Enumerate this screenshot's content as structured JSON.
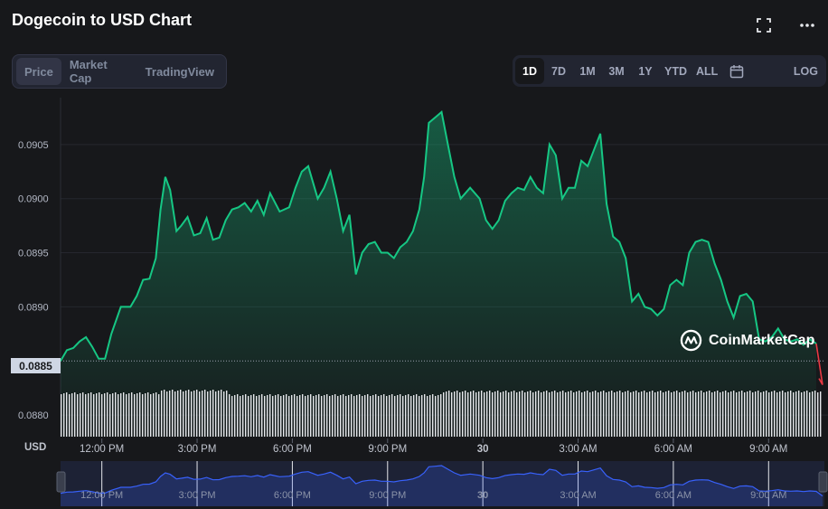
{
  "header": {
    "title": "Dogecoin to USD Chart"
  },
  "icons": {
    "fullscreen": "fullscreen-icon",
    "more": "more-icon",
    "calendar": "calendar-icon",
    "logo": "coinmarketcap-logo-icon"
  },
  "tabs": [
    {
      "label": "Price",
      "active": true
    },
    {
      "label": "Market Cap",
      "active": false
    },
    {
      "label": "TradingView",
      "active": false
    }
  ],
  "ranges": [
    {
      "label": "1D",
      "active": true
    },
    {
      "label": "7D",
      "active": false
    },
    {
      "label": "1M",
      "active": false
    },
    {
      "label": "3M",
      "active": false
    },
    {
      "label": "1Y",
      "active": false
    },
    {
      "label": "YTD",
      "active": false
    },
    {
      "label": "ALL",
      "active": false
    }
  ],
  "log_label": "LOG",
  "currency_label": "USD",
  "current_price_label": "0.0885",
  "watermark": "CoinMarketCap",
  "colors": {
    "line": "#16c784",
    "down": "#ea3943",
    "background": "#17181b",
    "panel": "#222531",
    "nav_line": "#3861fb"
  },
  "chart_data": {
    "type": "area",
    "title": "Dogecoin to USD Chart",
    "ylabel": "",
    "xlabel": "",
    "ylim": [
      0.0878,
      0.091
    ],
    "yticks": [
      0.088,
      0.0885,
      0.089,
      0.0895,
      0.09,
      0.0905
    ],
    "ytick_labels": [
      "0.0880",
      "0.0885",
      "0.0890",
      "0.0895",
      "0.0900",
      "0.0905"
    ],
    "xlim": [
      10.7,
      34.7
    ],
    "xticks": [
      {
        "x": 12,
        "label": "12:00 PM",
        "bold": false
      },
      {
        "x": 15,
        "label": "3:00 PM",
        "bold": false
      },
      {
        "x": 18,
        "label": "6:00 PM",
        "bold": false
      },
      {
        "x": 21,
        "label": "9:00 PM",
        "bold": false
      },
      {
        "x": 24,
        "label": "30",
        "bold": true
      },
      {
        "x": 27,
        "label": "3:00 AM",
        "bold": false
      },
      {
        "x": 30,
        "label": "6:00 AM",
        "bold": false
      },
      {
        "x": 33,
        "label": "9:00 AM",
        "bold": false
      }
    ],
    "grid": true,
    "legend": "none",
    "current_price": 0.0885,
    "series": [
      {
        "x": [
          10.7,
          10.9,
          11.1,
          11.3,
          11.5,
          11.7,
          11.9,
          12.1,
          12.3,
          12.6,
          12.9,
          13.1,
          13.3,
          13.5,
          13.7,
          13.85,
          14.0,
          14.15,
          14.35,
          14.5,
          14.7,
          14.9,
          15.1,
          15.3,
          15.5,
          15.7,
          15.9,
          16.1,
          16.3,
          16.5,
          16.7,
          16.9,
          17.1,
          17.3,
          17.6,
          17.9,
          18.1,
          18.3,
          18.5,
          18.8,
          19.0,
          19.2,
          19.4,
          19.6,
          19.8,
          20.0,
          20.2,
          20.4,
          20.6,
          20.8,
          21.0,
          21.2,
          21.4,
          21.6,
          21.8,
          22.0,
          22.15,
          22.3,
          22.5,
          22.7,
          22.9,
          23.1,
          23.3,
          23.6,
          23.9,
          24.1,
          24.3,
          24.5,
          24.7,
          24.9,
          25.1,
          25.3,
          25.5,
          25.7,
          25.9,
          26.1,
          26.3,
          26.5,
          26.7,
          26.9,
          27.1,
          27.3,
          27.5,
          27.7,
          27.9,
          28.1,
          28.3,
          28.5,
          28.7,
          28.9,
          29.1,
          29.3,
          29.5,
          29.7,
          29.9,
          30.1,
          30.3,
          30.5,
          30.7,
          30.9,
          31.1,
          31.3,
          31.5,
          31.7,
          31.9,
          32.1,
          32.3,
          32.5,
          32.7,
          32.9,
          33.1,
          33.3,
          33.5,
          33.7,
          33.9,
          34.1,
          34.3,
          34.5,
          34.7
        ],
        "values": [
          0.0885,
          0.0886,
          0.08862,
          0.08868,
          0.08872,
          0.08863,
          0.08852,
          0.08852,
          0.08875,
          0.089,
          0.089,
          0.0891,
          0.08925,
          0.08926,
          0.08945,
          0.0899,
          0.0902,
          0.09008,
          0.0897,
          0.08975,
          0.08983,
          0.08966,
          0.08968,
          0.08982,
          0.08962,
          0.08964,
          0.0898,
          0.0899,
          0.08992,
          0.08996,
          0.08988,
          0.08998,
          0.08985,
          0.09005,
          0.08988,
          0.08992,
          0.0901,
          0.09025,
          0.0903,
          0.09,
          0.0901,
          0.09025,
          0.09,
          0.0897,
          0.08985,
          0.0893,
          0.0895,
          0.08958,
          0.0896,
          0.0895,
          0.0895,
          0.08945,
          0.08955,
          0.0896,
          0.0897,
          0.0899,
          0.0902,
          0.0907,
          0.09075,
          0.0908,
          0.0905,
          0.0902,
          0.09,
          0.0901,
          0.09,
          0.0898,
          0.08972,
          0.0898,
          0.08998,
          0.09005,
          0.0901,
          0.09008,
          0.0902,
          0.0901,
          0.09005,
          0.0905,
          0.0904,
          0.09,
          0.0901,
          0.0901,
          0.09035,
          0.0903,
          0.09045,
          0.0906,
          0.08995,
          0.08965,
          0.0896,
          0.08945,
          0.08905,
          0.08912,
          0.089,
          0.08898,
          0.08892,
          0.08898,
          0.0892,
          0.08925,
          0.0892,
          0.0895,
          0.0896,
          0.08962,
          0.0896,
          0.0894,
          0.08925,
          0.08905,
          0.0889,
          0.0891,
          0.08912,
          0.08905,
          0.0887,
          0.08868,
          0.08872,
          0.0888,
          0.0887,
          0.08868,
          0.0887,
          0.08865,
          0.0887,
          0.08866,
          0.08828
        ]
      }
    ]
  }
}
